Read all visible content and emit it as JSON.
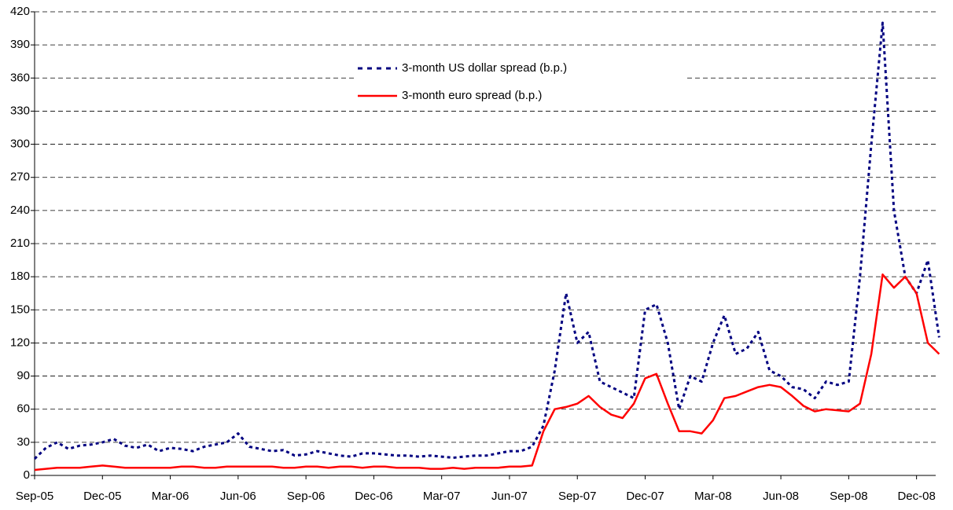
{
  "chart_data": {
    "type": "line",
    "categories": [
      "Sep-05",
      null,
      null,
      null,
      null,
      null,
      "Dec-05",
      null,
      null,
      null,
      null,
      null,
      "Mar-06",
      null,
      null,
      null,
      null,
      null,
      "Jun-06",
      null,
      null,
      null,
      null,
      null,
      "Sep-06",
      null,
      null,
      null,
      null,
      null,
      "Dec-06",
      null,
      null,
      null,
      null,
      null,
      "Mar-07",
      null,
      null,
      null,
      null,
      null,
      "Jun-07",
      null,
      null,
      null,
      null,
      null,
      "Sep-07",
      null,
      null,
      null,
      null,
      null,
      "Dec-07",
      null,
      null,
      null,
      null,
      null,
      "Mar-08",
      null,
      null,
      null,
      null,
      null,
      "Jun-08",
      null,
      null,
      null,
      null,
      null,
      "Sep-08",
      null,
      null,
      null,
      null,
      null,
      "Dec-08",
      null,
      null
    ],
    "series": [
      {
        "name": "3-month US dollar spread (b.p.)",
        "color": "#000080",
        "style": "dashed",
        "values": [
          15,
          25,
          30,
          24,
          27,
          28,
          30,
          33,
          27,
          25,
          28,
          22,
          25,
          24,
          22,
          26,
          28,
          30,
          38,
          26,
          24,
          22,
          23,
          18,
          19,
          22,
          20,
          18,
          17,
          20,
          20,
          19,
          18,
          18,
          17,
          18,
          17,
          16,
          17,
          18,
          18,
          20,
          22,
          22,
          26,
          45,
          95,
          165,
          120,
          130,
          85,
          80,
          75,
          70,
          150,
          155,
          120,
          60,
          90,
          85,
          120,
          145,
          110,
          115,
          130,
          95,
          90,
          80,
          78,
          70,
          85,
          82,
          85,
          180,
          300,
          410,
          240,
          180,
          165,
          195,
          125
        ]
      },
      {
        "name": "3-month euro spread (b.p.)",
        "color": "#ff0000",
        "style": "solid",
        "values": [
          5,
          6,
          7,
          7,
          7,
          8,
          9,
          8,
          7,
          7,
          7,
          7,
          7,
          8,
          8,
          7,
          7,
          8,
          8,
          8,
          8,
          8,
          7,
          7,
          8,
          8,
          7,
          8,
          8,
          7,
          8,
          8,
          7,
          7,
          7,
          6,
          6,
          7,
          6,
          7,
          7,
          7,
          8,
          8,
          9,
          40,
          60,
          62,
          65,
          72,
          62,
          55,
          52,
          65,
          88,
          92,
          65,
          40,
          40,
          38,
          50,
          70,
          72,
          76,
          80,
          82,
          80,
          72,
          63,
          58,
          60,
          59,
          58,
          65,
          110,
          182,
          170,
          180,
          165,
          120,
          110
        ]
      }
    ],
    "ylim": [
      0,
      420
    ],
    "yticks": [
      0,
      30,
      60,
      90,
      120,
      150,
      180,
      210,
      240,
      270,
      300,
      330,
      360,
      390,
      420
    ],
    "grid": true,
    "legend": "top-center"
  }
}
